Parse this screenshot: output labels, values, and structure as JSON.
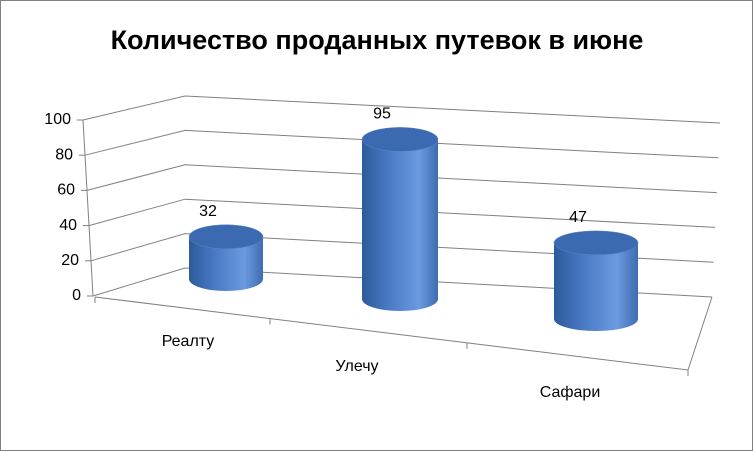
{
  "chart_data": {
    "type": "cylinder",
    "title": "Количество проданных путевок в июне",
    "categories": [
      "Реалту",
      "Улечу",
      "Сафари"
    ],
    "values": [
      32,
      95,
      47
    ],
    "color": "#4f81bd",
    "ylim": [
      0,
      100
    ],
    "yticks": [
      0,
      20,
      40,
      60,
      80,
      100
    ],
    "grid": true,
    "data_labels": true
  }
}
